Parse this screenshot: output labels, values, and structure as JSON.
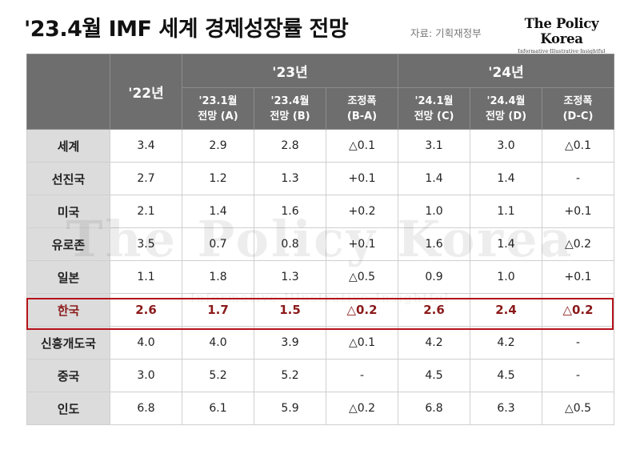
{
  "header": {
    "title": "'23.4월 IMF 세계 경제성장률 전망",
    "source": "자료: 기획재정부",
    "logo_main": "The Policy Korea",
    "logo_sub": "Informative·Illustrative·Insightful"
  },
  "watermark": {
    "main": "The Policy Korea",
    "sub": "Informative·Illustrative·Insightful"
  },
  "table": {
    "group_headers": {
      "y22": "'22년",
      "y23": "'23년",
      "y24": "'24년"
    },
    "sub_headers": [
      [
        "'23.1월",
        "전망 (A)"
      ],
      [
        "'23.4월",
        "전망 (B)"
      ],
      [
        "조정폭",
        "(B-A)"
      ],
      [
        "'24.1월",
        "전망 (C)"
      ],
      [
        "'24.4월",
        "전망 (D)"
      ],
      [
        "조정폭",
        "(D-C)"
      ]
    ],
    "rows": [
      {
        "name": "세계",
        "values": [
          "3.4",
          "2.9",
          "2.8",
          "△0.1",
          "3.1",
          "3.0",
          "△0.1"
        ]
      },
      {
        "name": "선진국",
        "values": [
          "2.7",
          "1.2",
          "1.3",
          "+0.1",
          "1.4",
          "1.4",
          "-"
        ]
      },
      {
        "name": "미국",
        "values": [
          "2.1",
          "1.4",
          "1.6",
          "+0.2",
          "1.0",
          "1.1",
          "+0.1"
        ]
      },
      {
        "name": "유로존",
        "values": [
          "3.5",
          "0.7",
          "0.8",
          "+0.1",
          "1.6",
          "1.4",
          "△0.2"
        ]
      },
      {
        "name": "일본",
        "values": [
          "1.1",
          "1.8",
          "1.3",
          "△0.5",
          "0.9",
          "1.0",
          "+0.1"
        ]
      },
      {
        "name": "한국",
        "values": [
          "2.6",
          "1.7",
          "1.5",
          "△0.2",
          "2.6",
          "2.4",
          "△0.2"
        ]
      },
      {
        "name": "신흥개도국",
        "values": [
          "4.0",
          "4.0",
          "3.9",
          "△0.1",
          "4.2",
          "4.2",
          "-"
        ]
      },
      {
        "name": "중국",
        "values": [
          "3.0",
          "5.2",
          "5.2",
          "-",
          "4.5",
          "4.5",
          "-"
        ]
      },
      {
        "name": "인도",
        "values": [
          "6.8",
          "6.1",
          "5.9",
          "△0.2",
          "6.8",
          "6.3",
          "△0.5"
        ]
      }
    ],
    "highlight_color": "#b5121b"
  }
}
